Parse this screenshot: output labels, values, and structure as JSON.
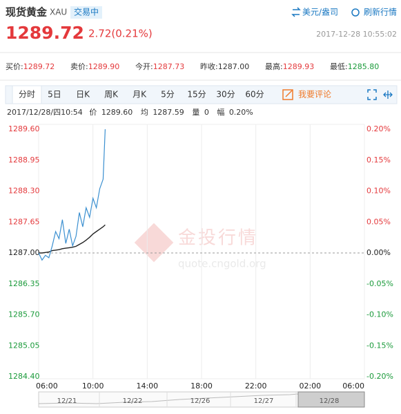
{
  "header": {
    "name": "现货黄金",
    "code": "XAU",
    "status": "交易中",
    "unit": "美元/盎司",
    "refresh": "刷新行情"
  },
  "quote": {
    "price": "1289.72",
    "change": "2.72(0.21%)",
    "time": "2017-12-28 10:55:02"
  },
  "stats": [
    {
      "label": "买价:",
      "value": "1289.72"
    },
    {
      "label": "卖价:",
      "value": "1289.90"
    },
    {
      "label": "今开:",
      "value": "1287.73"
    },
    {
      "label": "昨收:",
      "value": "1287.00"
    },
    {
      "label": "最高:",
      "value": "1289.93"
    },
    {
      "label": "最低:",
      "value": "1285.80"
    }
  ],
  "tabs": [
    "分时",
    "5日",
    "日K",
    "周K",
    "月K",
    "5分",
    "15分",
    "30分",
    "60分"
  ],
  "comment": "我要评论",
  "watermark": {
    "title": "金投行情",
    "url": "quote.cngold.org"
  },
  "navigator": {
    "dates": [
      "12/21",
      "12/22",
      "12/26",
      "12/27",
      "12/28"
    ]
  },
  "chart_data": {
    "type": "line",
    "readout": {
      "time": "2017/12/28/四10:54",
      "price": "1289.60",
      "avg": "1287.59",
      "volume_label": "量",
      "volume": "0",
      "range_label": "幅",
      "range": "0.20%"
    },
    "x": [
      "06:00",
      "06:15",
      "06:30",
      "06:45",
      "07:00",
      "07:15",
      "07:30",
      "07:45",
      "08:00",
      "08:15",
      "08:30",
      "08:45",
      "09:00",
      "09:15",
      "09:30",
      "09:45",
      "10:00",
      "10:15",
      "10:30",
      "10:45",
      "10:54"
    ],
    "series": [
      {
        "name": "价",
        "color": "#3a8fd0",
        "values": [
          1287.0,
          1286.85,
          1286.95,
          1286.9,
          1287.15,
          1287.45,
          1287.3,
          1287.7,
          1287.2,
          1287.5,
          1287.15,
          1287.35,
          1287.85,
          1287.55,
          1287.95,
          1287.75,
          1288.15,
          1287.95,
          1288.35,
          1288.55,
          1289.6
        ]
      },
      {
        "name": "均",
        "color": "#222222",
        "values": [
          1287.0,
          1287.0,
          1287.01,
          1287.02,
          1287.05,
          1287.06,
          1287.07,
          1287.09,
          1287.1,
          1287.11,
          1287.12,
          1287.14,
          1287.18,
          1287.22,
          1287.27,
          1287.33,
          1287.4,
          1287.45,
          1287.5,
          1287.55,
          1287.59
        ]
      }
    ],
    "xticks": [
      "06:00",
      "10:00",
      "14:00",
      "18:00",
      "22:00",
      "02:00",
      "06:00"
    ],
    "ylim": [
      1284.4,
      1289.6
    ],
    "yticks": [
      {
        "value": 1284.4,
        "label": "1284.40"
      },
      {
        "value": 1285.05,
        "label": "1285.05"
      },
      {
        "value": 1285.7,
        "label": "1285.70"
      },
      {
        "value": 1286.35,
        "label": "1286.35"
      },
      {
        "value": 1287.0,
        "label": "1287.00"
      },
      {
        "value": 1287.65,
        "label": "1287.65"
      },
      {
        "value": 1288.3,
        "label": "1288.30"
      },
      {
        "value": 1288.95,
        "label": "1288.95"
      },
      {
        "value": 1289.6,
        "label": "1289.60"
      }
    ],
    "y2lim": [
      -0.2,
      0.2
    ],
    "y2ticks": [
      {
        "value": -0.2,
        "label": "-0.20%"
      },
      {
        "value": -0.15,
        "label": "-0.15%"
      },
      {
        "value": -0.1,
        "label": "-0.10%"
      },
      {
        "value": -0.05,
        "label": "-0.05%"
      },
      {
        "value": 0,
        "label": "0.00%"
      },
      {
        "value": 0.05,
        "label": "0.05%"
      },
      {
        "value": 0.1,
        "label": "0.10%"
      },
      {
        "value": 0.15,
        "label": "0.15%"
      },
      {
        "value": 0.2,
        "label": "0.20%"
      }
    ],
    "grid": true
  }
}
